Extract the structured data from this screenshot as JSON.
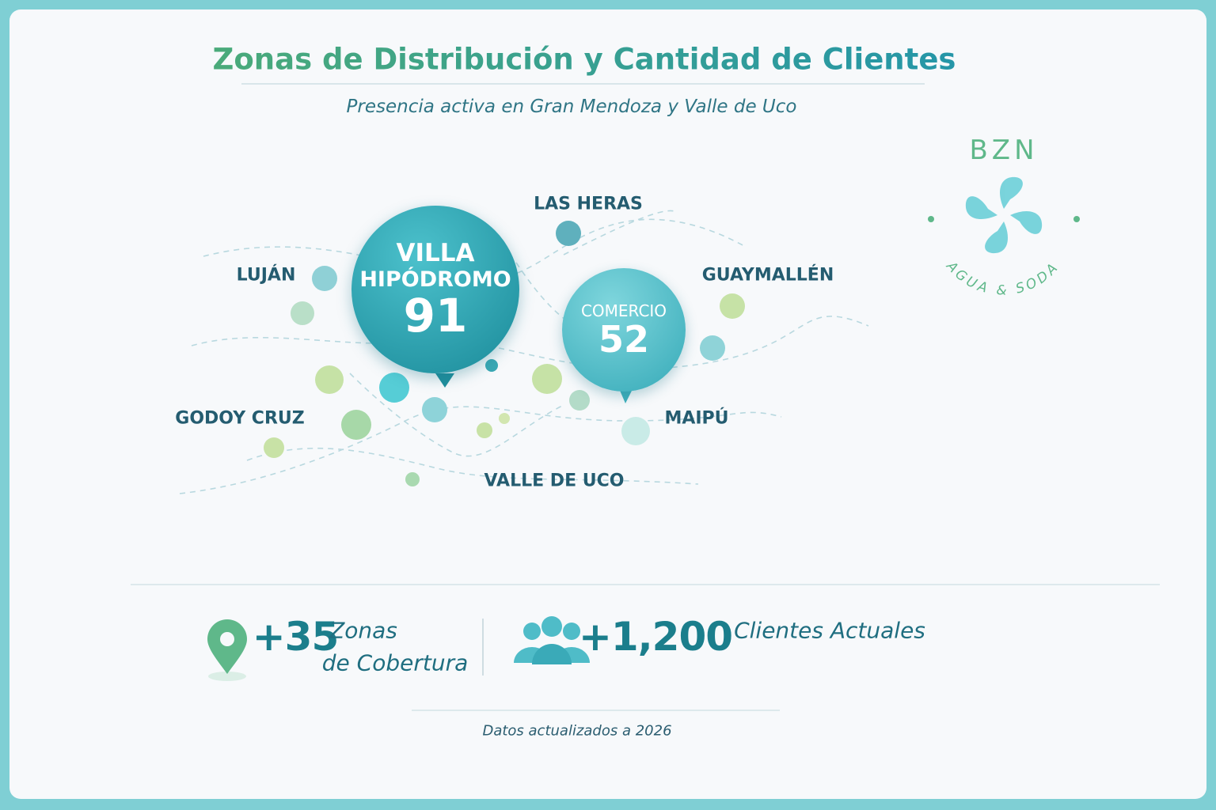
{
  "header": {
    "title": "Zonas de Distribución y Cantidad de Clientes",
    "subtitle": "Presencia activa en Gran Mendoza y Valle de Uco"
  },
  "logo": {
    "brand": "BZN",
    "tagline": "AGUA & SODA"
  },
  "map": {
    "zones": [
      "LAS HERAS",
      "LUJÁN",
      "GUAYMALLÉN",
      "GODOY CRUZ",
      "MAIPÚ",
      "VALLE DE UCO"
    ],
    "highlights": [
      {
        "label_lines": [
          "VILLA",
          "HIPÓDROMO"
        ],
        "clients": 91
      },
      {
        "label_lines": [
          "COMERCIO"
        ],
        "clients": 52
      }
    ]
  },
  "stats": [
    {
      "value": "+35",
      "label_lines": [
        "Zonas",
        "de Cobertura"
      ]
    },
    {
      "value": "+1,200",
      "label_lines": [
        "Clientes Actuales"
      ]
    }
  ],
  "footer": "Datos actualizados a 2026"
}
